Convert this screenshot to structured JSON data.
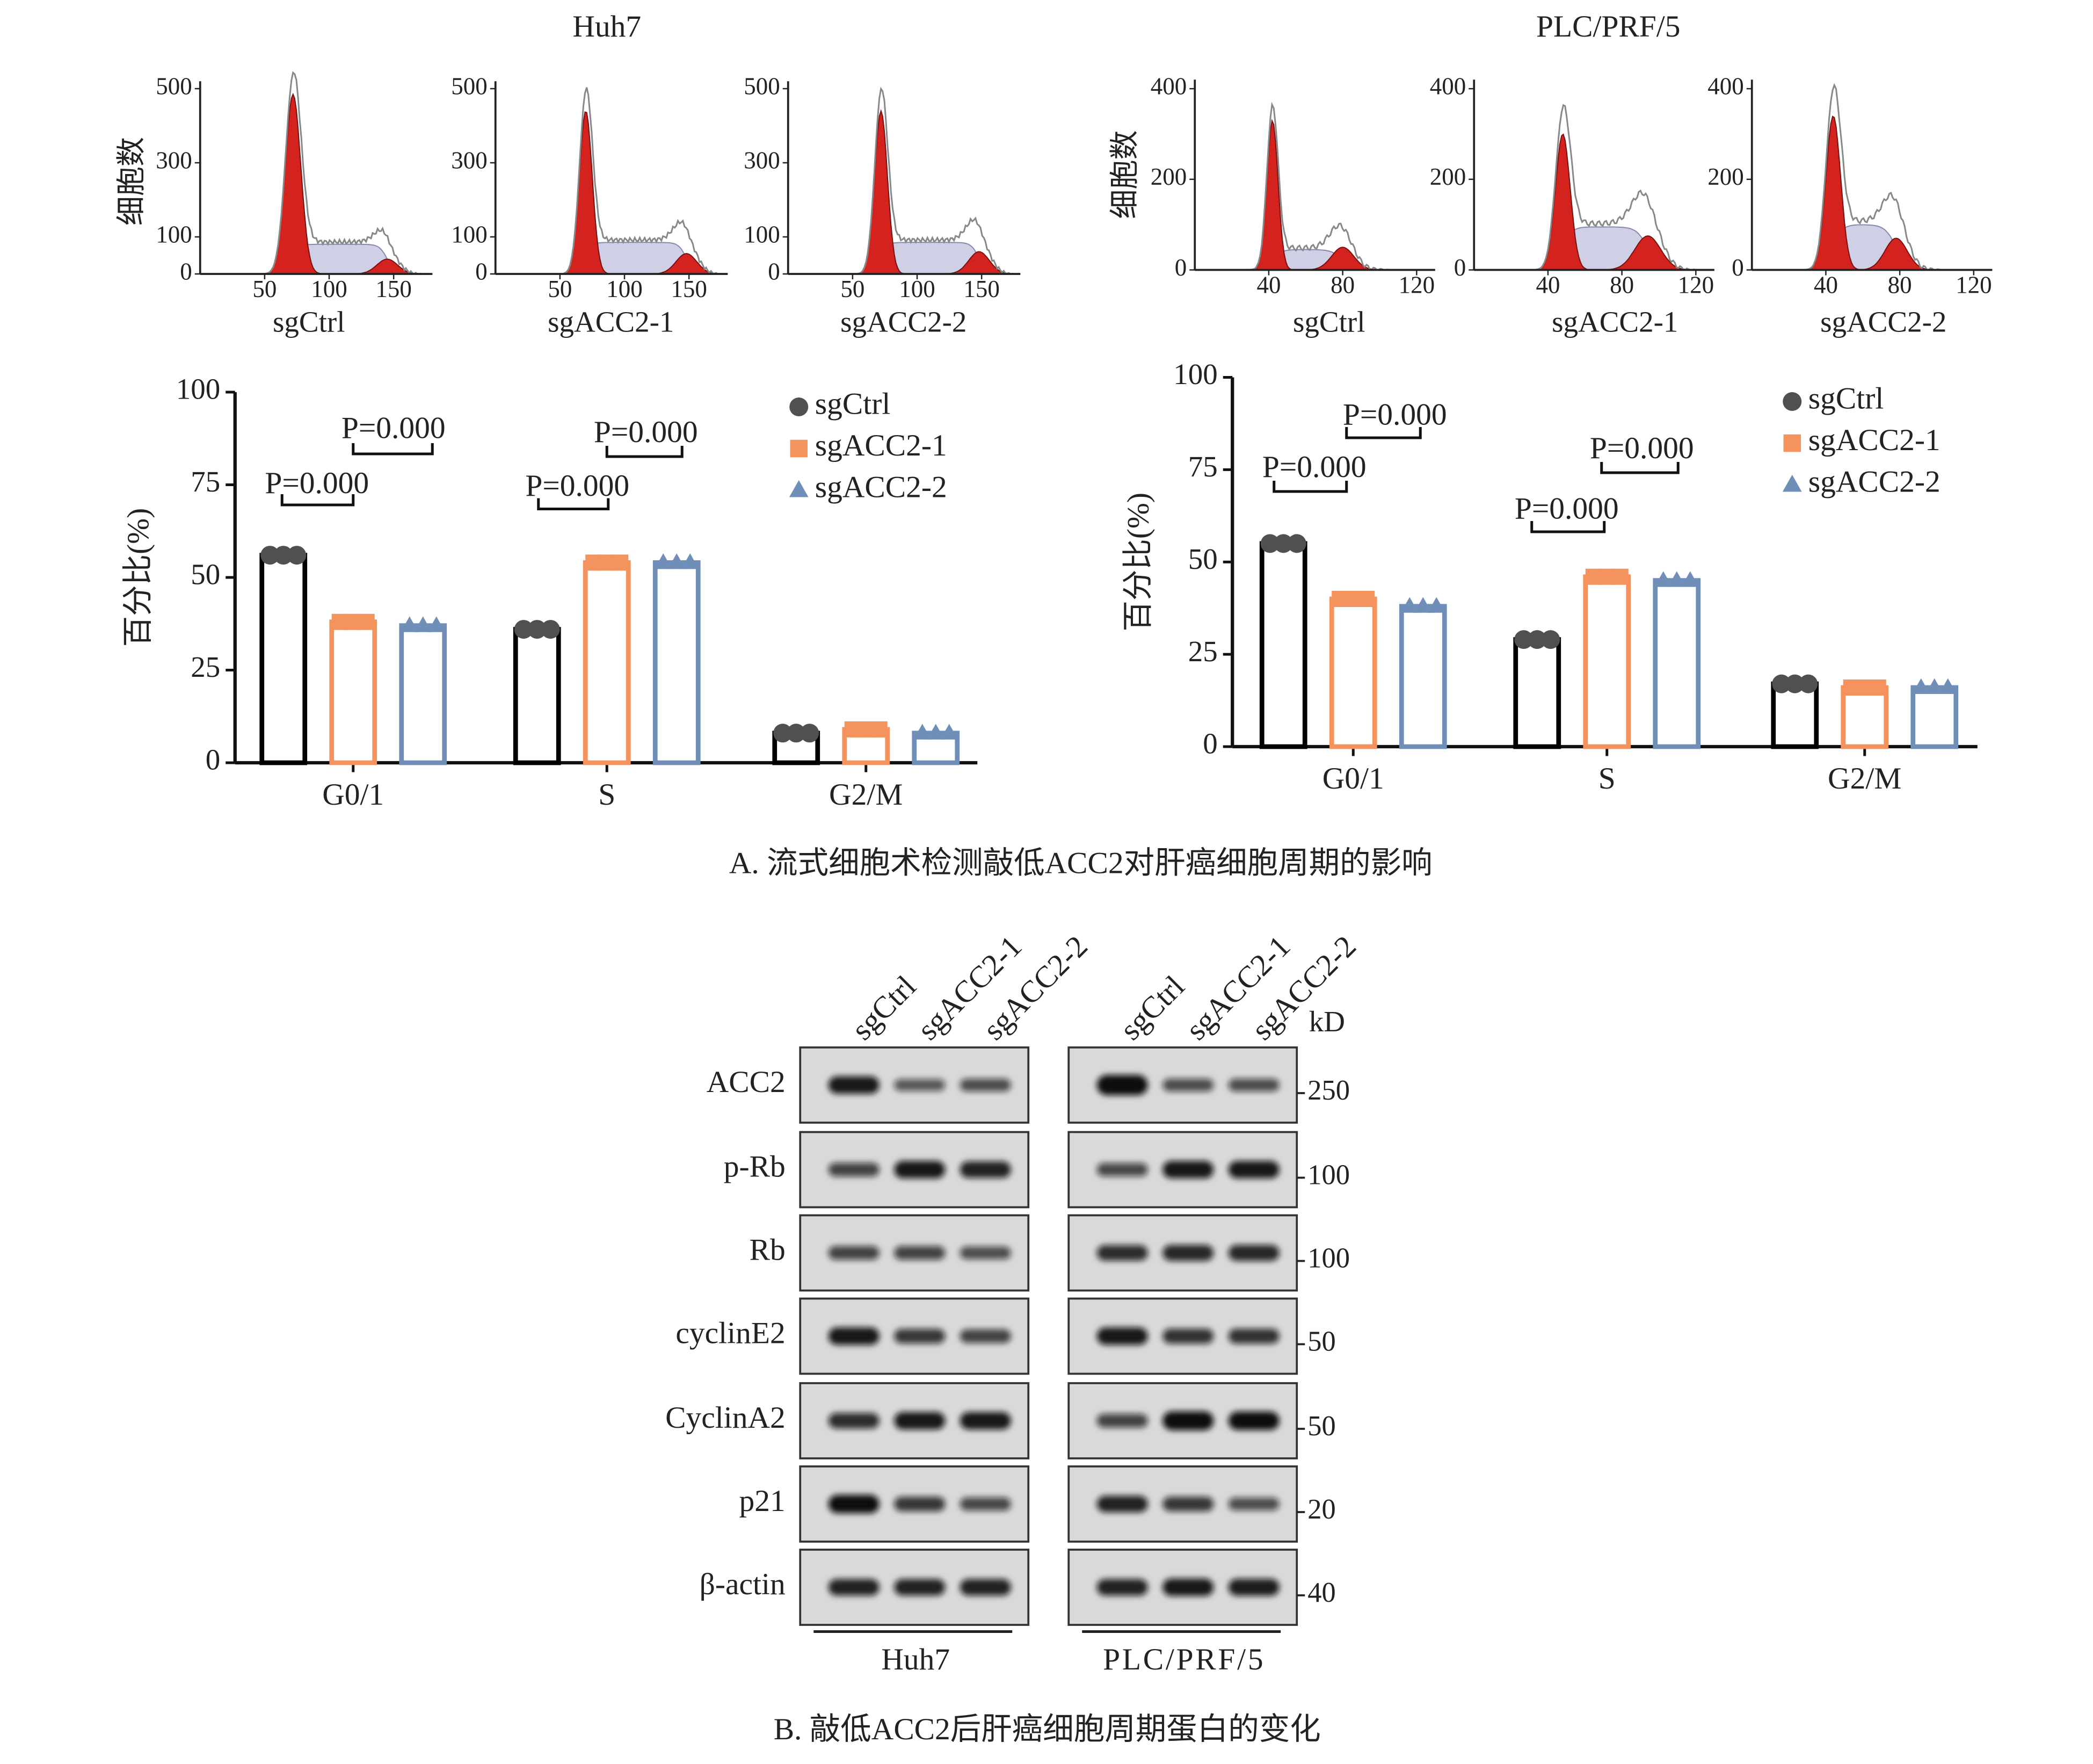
{
  "panel_a": {
    "caption": "A. 流式细胞术检测敲低ACC2对肝癌细胞周期的影响",
    "groups": [
      {
        "title": "Huh7",
        "ylabel": "细胞数",
        "histograms": [
          {
            "label": "sgCtrl",
            "xlim": [
              0,
              180
            ],
            "ylim": [
              0,
              520
            ],
            "xticks": [
              50,
              100,
              150
            ],
            "yticks": [
              0,
              100,
              300,
              500
            ]
          },
          {
            "label": "sgACC2-1",
            "xlim": [
              0,
              180
            ],
            "ylim": [
              0,
              520
            ],
            "xticks": [
              50,
              100,
              150
            ],
            "yticks": [
              0,
              100,
              300,
              500
            ]
          },
          {
            "label": "sgACC2-2",
            "xlim": [
              0,
              180
            ],
            "ylim": [
              0,
              520
            ],
            "xticks": [
              50,
              100,
              150
            ],
            "yticks": [
              0,
              100,
              300,
              500
            ]
          }
        ]
      },
      {
        "title": "PLC/PRF/5",
        "ylabel": "细胞数",
        "histograms": [
          {
            "label": "sgCtrl",
            "xlim": [
              0,
              130
            ],
            "ylim": [
              0,
              420
            ],
            "xticks": [
              40,
              80,
              120
            ],
            "yticks": [
              0,
              200,
              400
            ]
          },
          {
            "label": "sgACC2-1",
            "xlim": [
              0,
              130
            ],
            "ylim": [
              0,
              420
            ],
            "xticks": [
              40,
              80,
              120
            ],
            "yticks": [
              0,
              200,
              400
            ]
          },
          {
            "label": "sgACC2-2",
            "xlim": [
              0,
              130
            ],
            "ylim": [
              0,
              420
            ],
            "xticks": [
              40,
              80,
              120
            ],
            "yticks": [
              0,
              200,
              400
            ]
          }
        ]
      }
    ]
  },
  "chart_data": [
    {
      "type": "bar",
      "ylabel": "百分比(%)",
      "categories": [
        "G0/1",
        "S",
        "G2/M"
      ],
      "series": [
        {
          "name": "sgCtrl",
          "color": "#000000",
          "marker": "circle",
          "marker_color": "#505050",
          "values": [
            56,
            36,
            8
          ]
        },
        {
          "name": "sgACC2-1",
          "color": "#f4935e",
          "marker": "square",
          "marker_color": "#f4935e",
          "values": [
            38,
            54,
            9
          ]
        },
        {
          "name": "sgACC2-2",
          "color": "#6f8fb8",
          "marker": "triangle",
          "marker_color": "#6f8fb8",
          "values": [
            37,
            54,
            8
          ]
        }
      ],
      "ylim": [
        0,
        100
      ],
      "yticks": [
        0,
        25,
        50,
        75,
        100
      ],
      "annotations": [
        "P=0.000",
        "P=0.000",
        "P=0.000",
        "P=0.000"
      ]
    },
    {
      "type": "bar",
      "ylabel": "百分比(%)",
      "categories": [
        "G0/1",
        "S",
        "G2/M"
      ],
      "series": [
        {
          "name": "sgCtrl",
          "color": "#000000",
          "marker": "circle",
          "marker_color": "#505050",
          "values": [
            55,
            29,
            17
          ]
        },
        {
          "name": "sgACC2-1",
          "color": "#f4935e",
          "marker": "square",
          "marker_color": "#f4935e",
          "values": [
            40,
            46,
            16
          ]
        },
        {
          "name": "sgACC2-2",
          "color": "#6f8fb8",
          "marker": "triangle",
          "marker_color": "#6f8fb8",
          "values": [
            38,
            45,
            16
          ]
        }
      ],
      "ylim": [
        0,
        100
      ],
      "yticks": [
        0,
        25,
        50,
        75,
        100
      ],
      "annotations": [
        "P=0.000",
        "P=0.000",
        "P=0.000",
        "P=0.000"
      ]
    }
  ],
  "panel_b": {
    "caption": "B. 敲低ACC2后肝癌细胞周期蛋白的变化",
    "lanes": [
      "sgCtrl",
      "sgACC2-1",
      "sgACC2-2"
    ],
    "cell_lines": [
      "Huh7",
      "PLC/PRF/5"
    ],
    "kd_unit": "kD",
    "proteins": [
      {
        "name": "ACC2",
        "kd": 250
      },
      {
        "name": "p-Rb",
        "kd": 100
      },
      {
        "name": "Rb",
        "kd": 100
      },
      {
        "name": "cyclinE2",
        "kd": 50
      },
      {
        "name": "CyclinA2",
        "kd": 50
      },
      {
        "name": "p21",
        "kd": 20
      },
      {
        "name": "β-actin",
        "kd": 40
      }
    ]
  }
}
